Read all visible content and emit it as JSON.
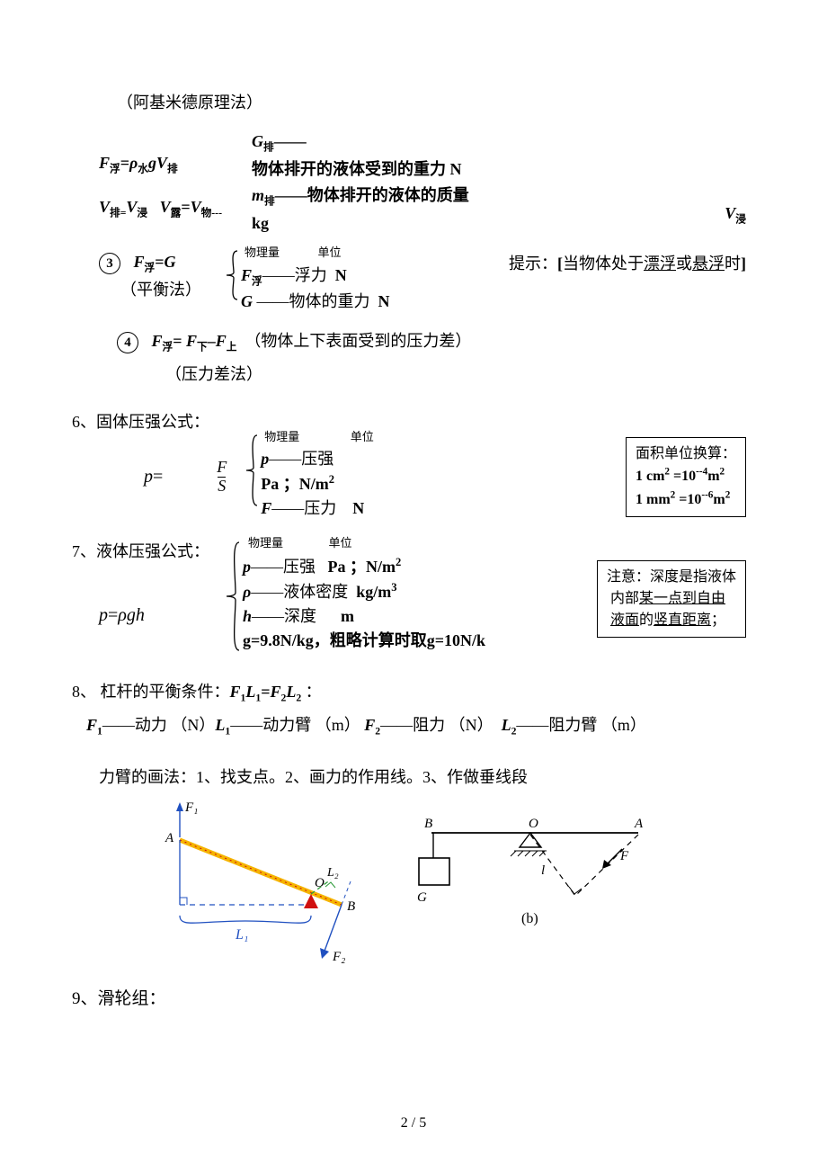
{
  "top_note": "（阿基米德原理法）",
  "sec_a": {
    "f_formula_html": "<span class='italic bold'>F</span><span class='sub bold'>浮</span><span class='bold'>=<span class='italic'>ρ</span></span><span class='sub bold'>水</span><span class='italic bold'>gV</span><span class='sub bold'>排</span>",
    "g_pai_html": "<span class='italic bold'>G</span><span class='sub bold'>排</span><span class='bold'>——</span>",
    "g_line": "物体排开的液体受到的重力 N",
    "m_line_html": "<span class='italic bold'>m</span><span class='sub bold'>排</span><span class='bold'>——物体排开的液体的质量</span>",
    "kg": "kg",
    "v_line_html": "<span class='italic bold'>V</span><span class='sub bold'>排=</span><span class='italic bold'>V</span><span class='sub bold'>浸</span>&nbsp;&nbsp;&nbsp;<span class='italic bold'>V</span><span class='sub bold'>露</span><span class='bold'>=<span class='italic'>V</span></span><span class='sub bold'>物---</span>",
    "v_jin_html": "<span class='italic bold'>V</span><span class='sub bold'>浸</span>"
  },
  "sec3": {
    "num": "3",
    "head_html": "<span class='italic bold'>F</span><span class='sub bold'>浮</span><span class='bold'>=<span class='italic'>G</span></span>",
    "paren": "（平衡法）",
    "hdr_qty": "物理量",
    "hdr_unit": "单位",
    "l1_html": "<span class='italic bold'>F</span><span class='sub bold'>浮</span>——浮力&nbsp;&nbsp;<span class='bold'>N</span>",
    "l2_html": "<span class='italic bold'>G</span> ——物体的重力&nbsp;&nbsp;<span class='bold'>N</span>",
    "hint_html": "提示：<span class='bold'>[</span>当物体处于<u>漂浮</u>或<u>悬浮</u>时<span class='bold'>]</span>"
  },
  "sec4": {
    "num": "4",
    "head_html": "<span class='italic bold'>F</span><span class='sub bold'>浮</span><span class='bold'>= <span class='italic'>F</span></span><span class='sub bold'>下</span><span class='bold'>–<span class='italic'>F</span></span><span class='sub bold'>上</span>&nbsp;&nbsp;（物体上下表面受到的压力差）",
    "paren": "（压力差法）"
  },
  "sec6": {
    "title": "6、固体压强公式：",
    "p_eq_html": "<span class='italic'>p</span>=",
    "frac_num": "F",
    "frac_den": "S",
    "hdr_qty": "物理量",
    "hdr_unit": "单位",
    "l1_html": "<span class='italic bold'>p</span>——压强",
    "l2_html": "<span class='bold'>Pa ；N/m<span class='super'>2</span></span>",
    "l3_html": "<span class='italic bold'>F</span>——压力&nbsp;&nbsp;&nbsp;&nbsp;<span class='bold'>N</span>",
    "box_html": "面积单位换算：<br><b>1 cm<span class='super'>2</span> =10<span class='super'>--4</span>m<span class='super'>2</span></b><br><b>1 mm<span class='super'>2</span> =10<span class='super'>--6</span>m<span class='super'>2</span></b>"
  },
  "sec7": {
    "title": "7、液体压强公式：",
    "formula_html": "<span class='italic'>p</span>=<span class='italic'>ρgh</span>",
    "hdr_qty": "物理量",
    "hdr_unit": "单位",
    "l1_html": "<span class='italic bold'>p</span>——压强&nbsp;&nbsp;&nbsp;<span class='bold'>Pa ；N/m<span class='super'>2</span></span>",
    "l2_html": "<span class='italic bold'>ρ</span>——液体密度&nbsp;&nbsp;<span class='bold'>kg/m<span class='super'>3</span></span>",
    "l3_html": "<span class='italic bold'>h</span>——深度&nbsp;&nbsp;&nbsp;&nbsp;&nbsp;&nbsp;<span class='bold'>m</span>",
    "l4_html": "<span class='bold'>g=9.8N/kg，粗略计算时取g=10N/k</span>",
    "box_html": "注意：深度是指液体<br>&nbsp;内部<u>某一点到自由</u><br>&nbsp;<u>液面</u>的<u>竖直距离</u>；"
  },
  "sec8": {
    "title_html": "8、 杠杆的平衡条件：<span class='italic bold'>F</span><span class='sub bold'>1</span><span class='italic bold'>L</span><span class='sub bold'>1</span><span class='bold'>=<span class='italic'>F</span></span><span class='sub bold'>2</span><span class='italic bold'>L</span><span class='sub bold'>2</span> ：",
    "line_html": "<span class='italic bold'>F</span><span class='sub bold'>1</span>——动力 （N）<span class='italic bold'>L</span><span class='sub bold'>1</span>——动力臂 （m）&nbsp;<span class='italic bold'>F</span><span class='sub bold'>2</span>——阻力 （N）&nbsp;&nbsp;<span class='italic bold'>L</span><span class='sub bold'>2</span>——阻力臂 （m）",
    "draw": "力臂的画法：1、找支点。2、画力的作用线。3、作做垂线段"
  },
  "fig1": {
    "F1": "F₁",
    "A": "A",
    "O": "O",
    "L2": "L₂",
    "B": "B",
    "L1": "L₁",
    "F2": "F₂",
    "lever_color": "#f5b400",
    "blue": "#2050c0",
    "green": "#2e9b3a",
    "red": "#d01010"
  },
  "fig2": {
    "B": "B",
    "O": "O",
    "A": "A",
    "G": "G",
    "F": "F",
    "l": "l",
    "b": "(b)"
  },
  "sec9": {
    "title": "9、滑轮组："
  },
  "pagenum": "2 / 5"
}
